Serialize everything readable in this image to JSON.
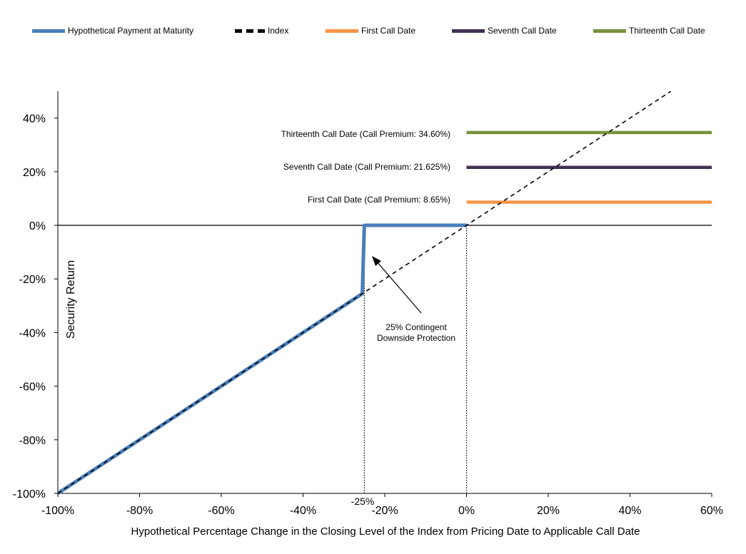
{
  "chart_data": {
    "type": "line",
    "xlabel": "Hypothetical Percentage Change in the Closing Level of the Index from Pricing Date to Applicable Call Date",
    "ylabel": "Security Return",
    "xlim": [
      -100,
      60
    ],
    "ylim": [
      -100,
      50
    ],
    "x_ticks": [
      -100,
      -80,
      -60,
      -40,
      -20,
      0,
      20,
      40,
      60
    ],
    "x_tick_labels": [
      "-100%",
      "-80%",
      "-60%",
      "-40%",
      "-20%",
      "0%",
      "20%",
      "40%",
      "60%"
    ],
    "y_ticks": [
      -100,
      -80,
      -60,
      -40,
      -20,
      0,
      20,
      40
    ],
    "y_tick_labels": [
      "-100%",
      "-80%",
      "-60%",
      "-40%",
      "-20%",
      "0%",
      "20%",
      "40%"
    ],
    "grid": false,
    "legend_position": "top",
    "series": [
      {
        "name": "Hypothetical Payment at Maturity",
        "color": "#4a7ebb",
        "style": "solid",
        "x": [
          -100,
          -25.5,
          -25,
          0
        ],
        "y": [
          -100,
          -25.5,
          0,
          0
        ]
      },
      {
        "name": "Index",
        "color": "#000000",
        "style": "dashed",
        "x": [
          -100,
          50
        ],
        "y": [
          -100,
          50
        ]
      },
      {
        "name": "First Call Date",
        "color": "#f79646",
        "style": "solid",
        "x": [
          0,
          60
        ],
        "y": [
          8.65,
          8.65
        ]
      },
      {
        "name": "Seventh Call Date",
        "color": "#403152",
        "style": "solid",
        "x": [
          0,
          60
        ],
        "y": [
          21.625,
          21.625
        ]
      },
      {
        "name": "Thirteenth Call Date",
        "color": "#77933c",
        "style": "solid",
        "x": [
          0,
          60
        ],
        "y": [
          34.6,
          34.6
        ]
      }
    ],
    "annotations": {
      "thirteenth": "Thirteenth  Call Date (Call Premium: 34.60%)",
      "seventh": "Seventh  Call Date (Call Premium: 21.625%)",
      "first": "First Call Date (Call Premium: 8.65%)",
      "protection_line1": "25% Contingent",
      "protection_line2": "Downside Protection",
      "threshold_label": "-25%"
    },
    "reference_x": [
      -25,
      0
    ]
  }
}
